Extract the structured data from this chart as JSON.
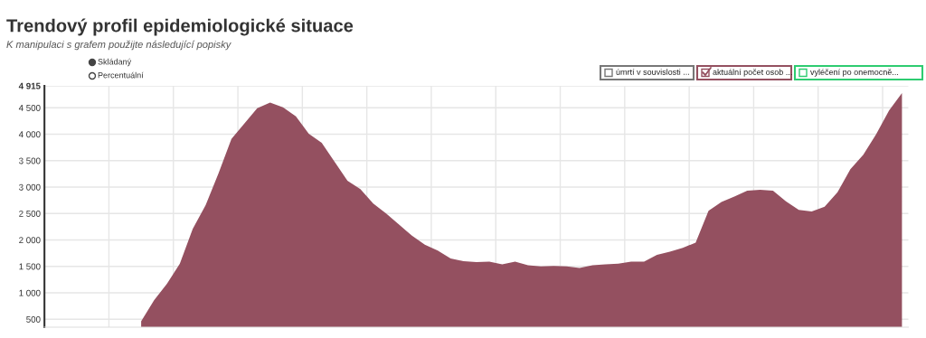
{
  "chart_data": {
    "type": "area",
    "title": "Trendový profil epidemiologické situace",
    "subtitle": "K manipulaci s grafem použijte následující popisky",
    "annotations": [
      "Skládaný",
      "Percentuální",
      "úmrtí v souvislosti ...",
      "vyléčení po onemocně..."
    ],
    "categories": [
      null,
      null,
      null,
      null,
      null,
      null,
      null,
      null,
      null,
      null,
      null,
      null,
      null,
      null,
      null,
      null,
      null,
      null,
      null,
      null,
      null,
      null,
      null,
      null,
      null,
      null,
      null,
      null,
      null,
      null,
      null,
      null,
      null,
      null,
      null,
      null,
      null,
      null,
      null,
      null,
      null,
      null,
      null,
      null,
      null,
      null,
      null,
      null,
      null,
      null,
      null,
      null,
      null,
      null,
      null,
      null,
      null,
      null,
      null,
      null,
      null,
      null,
      null,
      null,
      null,
      null,
      null
    ],
    "series": [
      {
        "name": "aktuální počet osob ...",
        "color": "#945060",
        "values": [
          null,
          null,
          null,
          null,
          null,
          null,
          null,
          460,
          860,
          1170,
          1550,
          2210,
          2660,
          3260,
          3910,
          4200,
          4490,
          4600,
          4510,
          4340,
          4010,
          3840,
          3480,
          3120,
          2960,
          2690,
          2500,
          2290,
          2080,
          1910,
          1800,
          1650,
          1600,
          1580,
          1590,
          1540,
          1590,
          1520,
          1500,
          1510,
          1500,
          1470,
          1520,
          1540,
          1550,
          1590,
          1590,
          1720,
          1780,
          1850,
          1950,
          2550,
          2720,
          2820,
          2930,
          2950,
          2930,
          2730,
          2570,
          2540,
          2630,
          2900,
          3340,
          3610,
          4000,
          4450,
          4780
        ]
      }
    ],
    "ylim": [
      350,
      4915
    ],
    "yticks": [
      {
        "value": 500,
        "label": "500"
      },
      {
        "value": 1000,
        "label": "1 000"
      },
      {
        "value": 1500,
        "label": "1 500"
      },
      {
        "value": 2000,
        "label": "2 000"
      },
      {
        "value": 2500,
        "label": "2 500"
      },
      {
        "value": 3000,
        "label": "3 000"
      },
      {
        "value": 3500,
        "label": "3 500"
      },
      {
        "value": 4000,
        "label": "4 000"
      },
      {
        "value": 4500,
        "label": "4 500"
      },
      {
        "value": 4915,
        "label": "4 915"
      }
    ],
    "grid": true,
    "legend": "top right",
    "tick_labels": "y"
  }
}
